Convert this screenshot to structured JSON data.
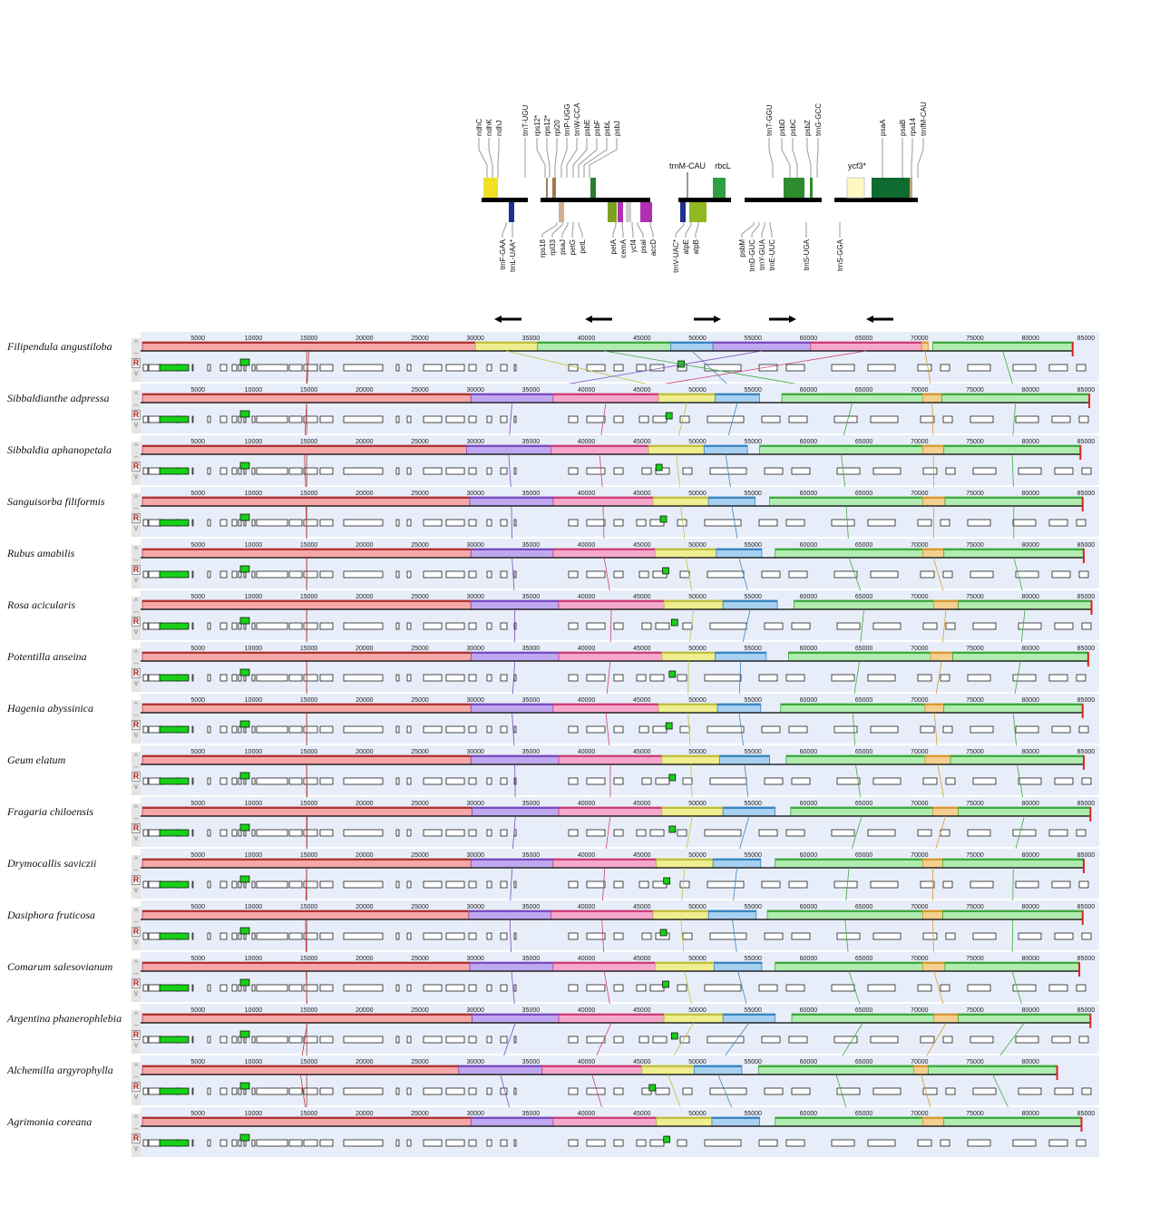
{
  "gene_map": {
    "above_labels": [
      "ndhC",
      "ndhK",
      "ndhJ",
      "trnT-UGU",
      "rps12*",
      "rps12*",
      "rpl20",
      "trnP-UGG",
      "trnW-CCA",
      "psbE",
      "psbF",
      "psbL",
      "psbJ",
      "trnT-GGU",
      "psbD",
      "psbC",
      "psbZ",
      "trnG-GCC",
      "psaA",
      "psaB",
      "rps14",
      "trnfM-CAU"
    ],
    "upright_labels": [
      "trnM-CAU",
      "rbcL",
      "ycf3*"
    ],
    "below_labels": [
      "trnF-GAA",
      "trnL-UAA*",
      "rps18",
      "rpl33",
      "psaJ",
      "petG",
      "petL",
      "petA",
      "cemA",
      "ycf4",
      "psaI",
      "accD",
      "trnV-UAC*",
      "atpE",
      "atpB",
      "psbM",
      "trnD-GUC",
      "trnY-GUA",
      "trnE-UUC",
      "trnS-UGA",
      "trnS-GGA"
    ],
    "arrows": [
      "left",
      "left",
      "right",
      "right",
      "left"
    ]
  },
  "ruler_ticks": [
    5000,
    10000,
    15000,
    20000,
    25000,
    30000,
    35000,
    40000,
    45000,
    50000,
    55000,
    60000,
    65000,
    70000,
    75000,
    80000,
    85000
  ],
  "controls": {
    "up": "^",
    "minus": "–",
    "reverse": "R",
    "down": "v"
  },
  "colors": {
    "red": "#b03535",
    "yellow": "#c0c040",
    "purple": "#7a4cc0",
    "pink": "#cc3f7a",
    "blue": "#3a86c0",
    "green": "#3faa3f",
    "orange": "#d89a30"
  },
  "chart_data": {
    "type": "alignment",
    "units": "bp",
    "species": [
      {
        "name": "Filipendula angustiloba",
        "length": 83800,
        "blocks": [
          [
            "red",
            0,
            30000
          ],
          [
            "yellow",
            30000,
            35600
          ],
          [
            "green",
            35600,
            47600
          ],
          [
            "blue",
            47600,
            51400
          ],
          [
            "purple",
            51400,
            60200
          ],
          [
            "pink",
            60200,
            70200
          ],
          [
            "orange",
            70200,
            70800
          ],
          [
            "green2",
            71200,
            83800
          ]
        ]
      },
      {
        "name": "Sibbaldianthe adpressa",
        "length": 85300,
        "blocks": [
          [
            "red",
            0,
            29600
          ],
          [
            "purple",
            29600,
            37000
          ],
          [
            "pink",
            37000,
            46500
          ],
          [
            "yellow",
            46500,
            51600
          ],
          [
            "blue",
            51600,
            55600
          ],
          [
            "green",
            57600,
            70300
          ],
          [
            "orange",
            70300,
            72000
          ],
          [
            "green2",
            72000,
            85300
          ]
        ]
      },
      {
        "name": "Sibbaldia aphanopetala",
        "length": 84500,
        "blocks": [
          [
            "red",
            0,
            29200
          ],
          [
            "purple",
            29200,
            36800
          ],
          [
            "pink",
            36800,
            45600
          ],
          [
            "yellow",
            45600,
            50600
          ],
          [
            "blue",
            50600,
            54500
          ],
          [
            "green",
            55600,
            70300
          ],
          [
            "orange",
            70300,
            72200
          ],
          [
            "green2",
            72200,
            84500
          ]
        ]
      },
      {
        "name": "Sanguisorba filiformis",
        "length": 84700,
        "blocks": [
          [
            "red",
            0,
            29500
          ],
          [
            "purple",
            29500,
            37000
          ],
          [
            "pink",
            37000,
            46000
          ],
          [
            "yellow",
            46000,
            51000
          ],
          [
            "blue",
            51000,
            55200
          ],
          [
            "green",
            56500,
            70300
          ],
          [
            "orange",
            70300,
            72300
          ],
          [
            "green2",
            72300,
            84700
          ]
        ]
      },
      {
        "name": "Rubus amabilis",
        "length": 84800,
        "blocks": [
          [
            "red",
            0,
            29600
          ],
          [
            "purple",
            29600,
            37000
          ],
          [
            "pink",
            37000,
            46200
          ],
          [
            "yellow",
            46200,
            51700
          ],
          [
            "blue",
            51700,
            55800
          ],
          [
            "green",
            57000,
            70300
          ],
          [
            "orange",
            70300,
            72200
          ],
          [
            "green2",
            72200,
            84800
          ]
        ]
      },
      {
        "name": "Rosa acicularis",
        "length": 85500,
        "blocks": [
          [
            "red",
            0,
            29600
          ],
          [
            "purple",
            29600,
            37500
          ],
          [
            "pink",
            37500,
            47000
          ],
          [
            "yellow",
            47000,
            52300
          ],
          [
            "blue",
            52300,
            57200
          ],
          [
            "green",
            58700,
            71300
          ],
          [
            "orange",
            71300,
            73500
          ],
          [
            "green2",
            73500,
            85500
          ]
        ]
      },
      {
        "name": "Potentilla anseina",
        "length": 85200,
        "blocks": [
          [
            "red",
            0,
            29600
          ],
          [
            "purple",
            29600,
            37500
          ],
          [
            "pink",
            37500,
            46800
          ],
          [
            "yellow",
            46800,
            51600
          ],
          [
            "blue",
            51600,
            56200
          ],
          [
            "green",
            58200,
            71000
          ],
          [
            "orange",
            71000,
            73000
          ],
          [
            "green2",
            73000,
            85200
          ]
        ]
      },
      {
        "name": "Hagenia abyssinica",
        "length": 84700,
        "blocks": [
          [
            "red",
            0,
            29600
          ],
          [
            "purple",
            29600,
            37000
          ],
          [
            "pink",
            37000,
            46500
          ],
          [
            "yellow",
            46500,
            51800
          ],
          [
            "blue",
            51800,
            55700
          ],
          [
            "green",
            57500,
            70500
          ],
          [
            "orange",
            70500,
            72200
          ],
          [
            "green2",
            72200,
            84700
          ]
        ]
      },
      {
        "name": "Geum elatum",
        "length": 84800,
        "blocks": [
          [
            "red",
            0,
            29600
          ],
          [
            "purple",
            29600,
            37500
          ],
          [
            "pink",
            37500,
            46800
          ],
          [
            "yellow",
            46800,
            52000
          ],
          [
            "blue",
            52000,
            56500
          ],
          [
            "green",
            58000,
            70500
          ],
          [
            "orange",
            70500,
            72800
          ],
          [
            "green2",
            72800,
            84800
          ]
        ]
      },
      {
        "name": "Fragaria chiloensis",
        "length": 85400,
        "blocks": [
          [
            "red",
            0,
            29700
          ],
          [
            "purple",
            29700,
            37500
          ],
          [
            "pink",
            37500,
            46800
          ],
          [
            "yellow",
            46800,
            52300
          ],
          [
            "blue",
            52300,
            57000
          ],
          [
            "green",
            58400,
            71200
          ],
          [
            "orange",
            71200,
            73500
          ],
          [
            "green2",
            73500,
            85400
          ]
        ]
      },
      {
        "name": "Drymocallis saviczii",
        "length": 84800,
        "blocks": [
          [
            "red",
            0,
            29600
          ],
          [
            "purple",
            29600,
            37000
          ],
          [
            "pink",
            37000,
            46300
          ],
          [
            "yellow",
            46300,
            51400
          ],
          [
            "blue",
            51400,
            55700
          ],
          [
            "green",
            57000,
            70300
          ],
          [
            "orange",
            70300,
            72100
          ],
          [
            "green2",
            72100,
            84800
          ]
        ]
      },
      {
        "name": "Dasiphora fruticosa",
        "length": 84700,
        "blocks": [
          [
            "red",
            0,
            29400
          ],
          [
            "purple",
            29400,
            36800
          ],
          [
            "pink",
            36800,
            46000
          ],
          [
            "yellow",
            46000,
            51000
          ],
          [
            "blue",
            51000,
            55300
          ],
          [
            "green",
            56300,
            70300
          ],
          [
            "orange",
            70300,
            72100
          ],
          [
            "green2",
            72100,
            84700
          ]
        ]
      },
      {
        "name": "Comarum salesovianum",
        "length": 84400,
        "blocks": [
          [
            "red",
            0,
            29500
          ],
          [
            "purple",
            29500,
            37000
          ],
          [
            "pink",
            37000,
            46200
          ],
          [
            "yellow",
            46200,
            51500
          ],
          [
            "blue",
            51500,
            55800
          ],
          [
            "green",
            57000,
            70300
          ],
          [
            "orange",
            70300,
            72300
          ],
          [
            "green2",
            72300,
            84400
          ]
        ]
      },
      {
        "name": "Argentina phanerophlebia",
        "length": 85400,
        "blocks": [
          [
            "red",
            0,
            29700
          ],
          [
            "purple",
            29700,
            37500
          ],
          [
            "pink",
            37500,
            47000
          ],
          [
            "yellow",
            47000,
            52300
          ],
          [
            "blue",
            52300,
            57000
          ],
          [
            "green",
            58500,
            71300
          ],
          [
            "orange",
            71300,
            73500
          ],
          [
            "green2",
            73500,
            85400
          ]
        ]
      },
      {
        "name": "Alchemilla argyrophylla",
        "length": 82400,
        "blocks": [
          [
            "red",
            0,
            28500
          ],
          [
            "purple",
            28500,
            36000
          ],
          [
            "pink",
            36000,
            45000
          ],
          [
            "yellow",
            45000,
            49700
          ],
          [
            "blue",
            49700,
            54000
          ],
          [
            "green",
            55500,
            69500
          ],
          [
            "orange",
            69500,
            70800
          ],
          [
            "green2",
            70800,
            82400
          ]
        ]
      },
      {
        "name": "Agrimonia coreana",
        "length": 84600,
        "blocks": [
          [
            "red",
            0,
            29600
          ],
          [
            "purple",
            29600,
            37000
          ],
          [
            "pink",
            37000,
            46300
          ],
          [
            "yellow",
            46300,
            51300
          ],
          [
            "blue",
            51300,
            55600
          ],
          [
            "green",
            57000,
            70300
          ],
          [
            "orange",
            70300,
            72200
          ],
          [
            "green2",
            72200,
            84600
          ]
        ]
      }
    ]
  }
}
